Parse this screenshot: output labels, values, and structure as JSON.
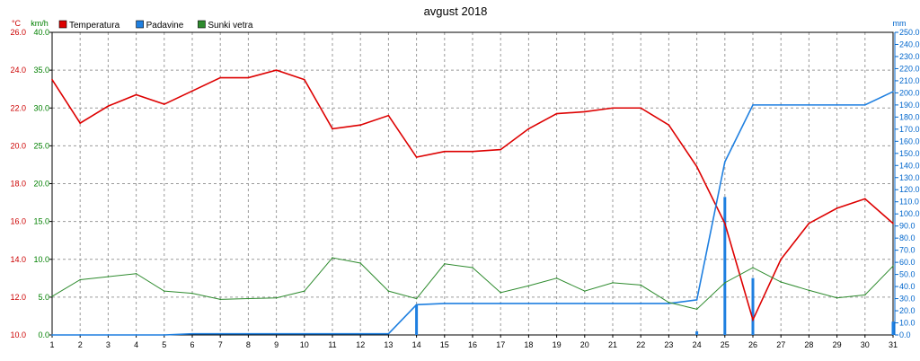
{
  "chart_data": {
    "type": "line",
    "title": "avgust 2018",
    "unit_labels": {
      "temperature": "°C",
      "wind": "km/h",
      "precipitation": "mm"
    },
    "x": [
      1,
      2,
      3,
      4,
      5,
      6,
      7,
      8,
      9,
      10,
      11,
      12,
      13,
      14,
      15,
      16,
      17,
      18,
      19,
      20,
      21,
      22,
      23,
      24,
      25,
      26,
      27,
      28,
      29,
      30,
      31
    ],
    "x_tick_labels": [
      "1",
      "2",
      "3",
      "4",
      "5",
      "6",
      "7",
      "8",
      "9",
      "10",
      "11",
      "12",
      "13",
      "14",
      "15",
      "16",
      "17",
      "18",
      "19",
      "20",
      "21",
      "22",
      "23",
      "24",
      "25",
      "26",
      "27",
      "28",
      "29",
      "30",
      "31"
    ],
    "xlim": [
      1,
      31
    ],
    "axes": {
      "temperature": {
        "range": [
          10,
          26
        ],
        "ticks": [
          "10.0",
          "12.0",
          "14.0",
          "16.0",
          "18.0",
          "20.0",
          "22.0",
          "24.0",
          "26.0"
        ],
        "color": "#cc0000"
      },
      "wind": {
        "range": [
          0,
          40
        ],
        "ticks": [
          "0.0",
          "5.0",
          "10.0",
          "15.0",
          "20.0",
          "25.0",
          "30.0",
          "35.0",
          "40.0"
        ],
        "color": "#008000"
      },
      "precipitation": {
        "range": [
          0,
          250
        ],
        "ticks": [
          "0.0",
          "10.0",
          "20.0",
          "30.0",
          "40.0",
          "50.0",
          "60.0",
          "70.0",
          "80.0",
          "90.0",
          "100.0",
          "110.0",
          "120.0",
          "130.0",
          "140.0",
          "150.0",
          "160.0",
          "170.0",
          "180.0",
          "190.0",
          "200.0",
          "210.0",
          "220.0",
          "230.0",
          "240.0",
          "250.0"
        ],
        "color": "#0066cc"
      }
    },
    "grid": true,
    "legend_position": "top-left",
    "series": [
      {
        "name": "Temperatura",
        "axis": "temperature",
        "color": "#dd0000",
        "values": [
          23.5,
          21.2,
          22.1,
          22.7,
          22.2,
          22.9,
          23.6,
          23.6,
          24.0,
          23.5,
          20.9,
          21.1,
          21.6,
          19.4,
          19.7,
          19.7,
          19.8,
          20.9,
          21.7,
          21.8,
          22.0,
          22.0,
          21.1,
          18.9,
          15.9,
          10.8,
          14.0,
          15.9,
          16.7,
          17.2,
          15.9
        ]
      },
      {
        "name": "Padavine",
        "axis": "precipitation",
        "color": "#1e7fe0",
        "values": [
          0,
          0,
          0,
          0,
          0,
          1,
          1,
          1,
          1,
          1,
          1,
          1,
          1,
          25,
          26,
          26,
          26,
          26,
          26,
          26,
          26,
          26,
          26,
          29,
          143,
          190,
          190,
          190,
          190,
          190,
          201
        ]
      },
      {
        "name": "Sunki vetra",
        "axis": "wind",
        "color": "#2e8b2e",
        "values": [
          5.1,
          7.3,
          7.7,
          8.1,
          5.8,
          5.5,
          4.7,
          4.8,
          4.9,
          5.8,
          10.2,
          9.5,
          5.8,
          4.8,
          9.4,
          8.9,
          5.6,
          6.5,
          7.5,
          5.8,
          6.9,
          6.6,
          4.3,
          3.4,
          6.9,
          8.9,
          7.0,
          5.9,
          4.9,
          5.3,
          9.1
        ]
      }
    ],
    "precipitation_daily_bars": {
      "color": "#1e7fe0",
      "x": [
        14,
        24,
        25,
        26,
        31
      ],
      "values": [
        25,
        3,
        114,
        47,
        11
      ]
    }
  }
}
